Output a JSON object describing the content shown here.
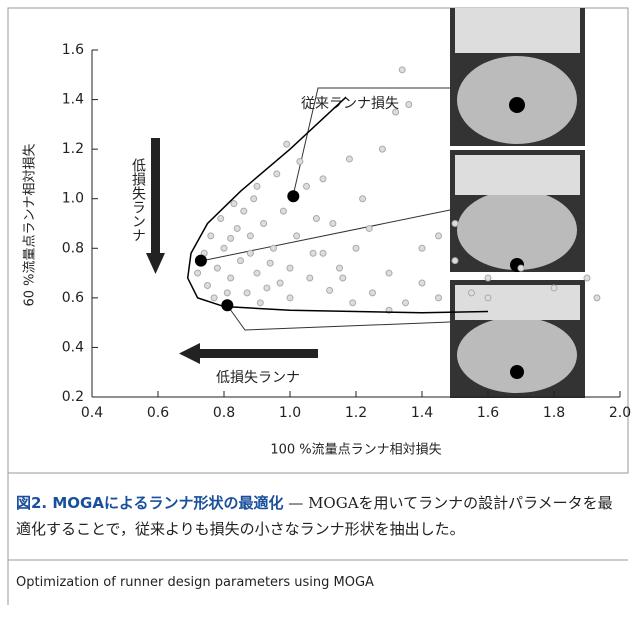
{
  "chart_data": {
    "type": "scatter",
    "xlabel": "100 %流量点ランナ相対損失",
    "ylabel": "60 %流量点ランナ相対損失",
    "xlim": [
      0.4,
      2.0
    ],
    "xticks": [
      0.4,
      0.6,
      0.8,
      {
        "value": 1,
        "label": "1.0"
      },
      1.2,
      1.4,
      1.6,
      1.8,
      {
        "value": 2,
        "label": "2.0"
      }
    ],
    "ylim": [
      0.2,
      1.6
    ],
    "yticks": [
      0.2,
      0.4,
      0.6,
      0.8,
      {
        "value": 1,
        "label": "1.0"
      },
      1.2,
      1.4,
      1.6
    ],
    "series": [
      {
        "type": "scatter",
        "color": "#aaaaaa",
        "x": [
          0.75,
          0.78,
          0.8,
          0.82,
          0.85,
          0.88,
          0.9,
          0.92,
          0.95,
          0.98,
          0.76,
          0.79,
          0.83,
          0.87,
          0.93,
          1.0,
          1.02,
          1.05,
          1.08,
          1.1,
          0.72,
          0.74,
          0.77,
          0.84,
          0.89,
          0.96,
          1.03,
          1.06,
          1.12,
          1.15,
          1.2,
          1.25,
          1.3,
          1.35,
          1.4,
          1.45,
          1.5,
          1.55,
          1.6,
          1.7,
          1.8,
          1.9,
          1.93,
          1.22,
          1.28,
          1.32,
          1.36,
          1.34,
          1.1,
          1.18,
          0.99,
          0.9,
          0.86,
          0.81,
          0.91,
          1.0,
          1.13,
          1.24,
          1.4,
          1.16,
          0.94,
          0.97,
          1.07,
          1.19,
          1.3,
          1.5,
          1.6,
          1.45,
          0.88,
          0.82
        ],
        "y": [
          0.65,
          0.72,
          0.8,
          0.68,
          0.75,
          0.85,
          0.7,
          0.9,
          0.8,
          0.95,
          0.85,
          0.92,
          0.98,
          0.62,
          0.64,
          0.72,
          0.85,
          1.05,
          0.92,
          0.78,
          0.7,
          0.78,
          0.6,
          0.88,
          1.0,
          1.1,
          1.15,
          0.68,
          0.63,
          0.72,
          0.8,
          0.62,
          0.7,
          0.58,
          0.66,
          0.6,
          0.75,
          0.62,
          0.68,
          0.72,
          0.64,
          0.68,
          0.6,
          1.0,
          1.2,
          1.35,
          1.38,
          1.52,
          1.08,
          1.16,
          1.22,
          1.05,
          0.95,
          0.62,
          0.58,
          0.6,
          0.9,
          0.88,
          0.8,
          0.68,
          0.74,
          0.66,
          0.78,
          0.58,
          0.55,
          0.9,
          0.6,
          0.85,
          0.78,
          0.84
        ]
      },
      {
        "type": "line",
        "color": "#000000",
        "x": [
          1.17,
          1.0,
          0.85,
          0.75,
          0.7,
          0.69,
          0.72,
          0.8,
          1.0,
          1.4,
          1.6
        ],
        "y": [
          1.41,
          1.2,
          1.03,
          0.9,
          0.78,
          0.68,
          0.6,
          0.565,
          0.55,
          0.54,
          0.545
        ]
      },
      {
        "type": "highlight",
        "color": "#000000",
        "x": [
          1.01,
          0.73,
          0.81
        ],
        "y": [
          1.01,
          0.75,
          0.57
        ]
      }
    ],
    "annotations": [
      "従来ランナ損失",
      "低損失ランナ",
      "低損失ランナ"
    ]
  },
  "caption": {
    "title": "図2. MOGAによるランナ形状の最適化",
    "body": "— MOGAを用いてランナの設計パラメータを最適化することで，従来よりも損失の小さなランナ形状を抽出した。",
    "english": "Optimization of runner design parameters using MOGA"
  }
}
